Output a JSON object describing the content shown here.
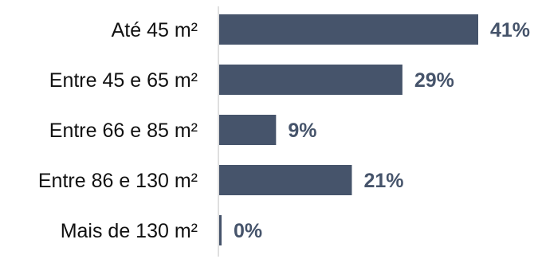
{
  "chart_data": {
    "type": "bar",
    "orientation": "horizontal",
    "title": "",
    "xlabel": "",
    "ylabel": "",
    "categories": [
      "Até 45 m²",
      "Entre 45 e 65 m²",
      "Entre 66 e 85 m²",
      "Entre 86 e 130 m²",
      "Mais de 130 m²"
    ],
    "values": [
      41,
      29,
      9,
      21,
      0
    ],
    "value_labels": [
      "41%",
      "29%",
      "9%",
      "21%",
      "0%"
    ],
    "unit": "%",
    "xlim": [
      0,
      41
    ],
    "grid": false,
    "legend": "none",
    "colors": {
      "bar": "#46546b",
      "value_label": "#46546b",
      "category_label": "#111111",
      "axis": "#bfbfbf"
    }
  }
}
